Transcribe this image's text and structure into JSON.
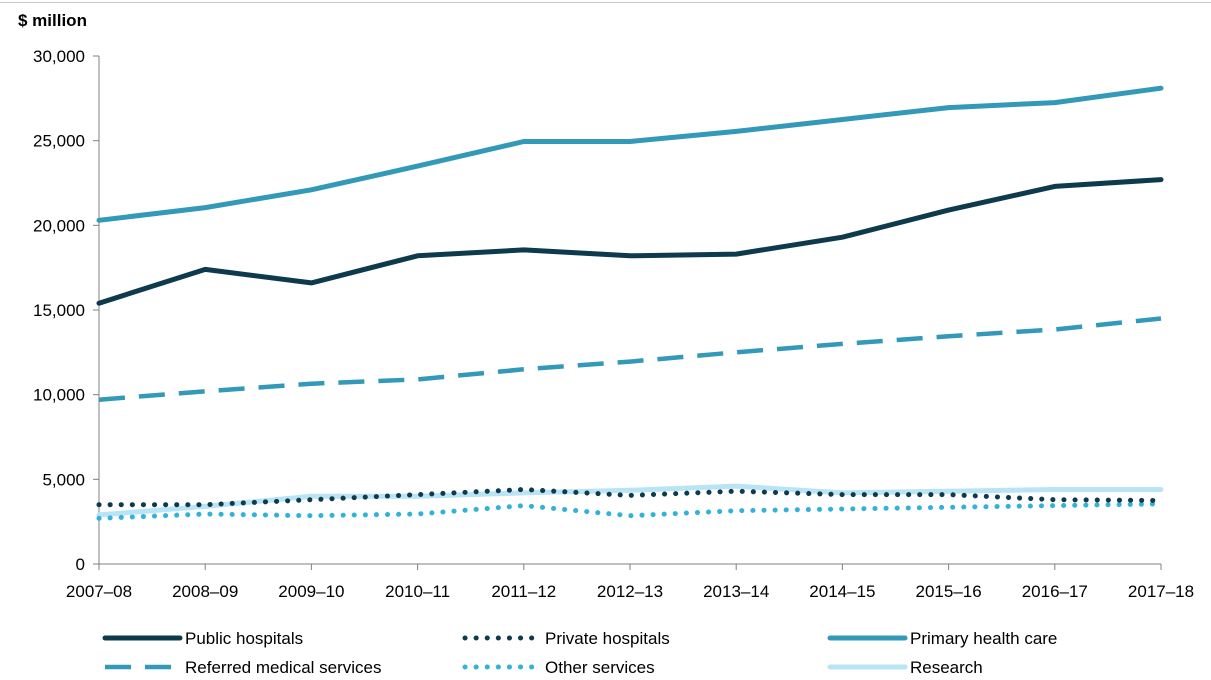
{
  "chart_data": {
    "type": "line",
    "ylabel": "$ million",
    "xlabel": "",
    "categories": [
      "2007–08",
      "2008–09",
      "2009–10",
      "2010–11",
      "2011–12",
      "2012–13",
      "2013–14",
      "2014–15",
      "2015–16",
      "2016–17",
      "2017–18"
    ],
    "ylim": [
      0,
      30000
    ],
    "yticks": [
      0,
      5000,
      10000,
      15000,
      20000,
      25000,
      30000
    ],
    "ytick_labels": [
      "0",
      "5,000",
      "10,000",
      "15,000",
      "20,000",
      "25,000",
      "30,000"
    ],
    "grid": false,
    "legend_position": "bottom",
    "series": [
      {
        "name": "Public hospitals",
        "style": "solid",
        "color": "#0d3a4c",
        "values": [
          15400,
          17400,
          16600,
          18200,
          18550,
          18200,
          18300,
          19300,
          20900,
          22300,
          22700
        ]
      },
      {
        "name": "Private hospitals",
        "style": "dotted",
        "color": "#0d3a4c",
        "values": [
          3500,
          3500,
          3800,
          4100,
          4400,
          4050,
          4300,
          4100,
          4100,
          3800,
          3750
        ]
      },
      {
        "name": "Primary health care",
        "style": "solid",
        "color": "#3399b8",
        "values": [
          20300,
          21050,
          22100,
          23500,
          24950,
          24950,
          25550,
          26250,
          26950,
          27250,
          28100
        ]
      },
      {
        "name": "Referred medical services",
        "style": "dashed",
        "color": "#3399b8",
        "values": [
          9700,
          10200,
          10650,
          10900,
          11500,
          11950,
          12500,
          13000,
          13450,
          13850,
          14500
        ]
      },
      {
        "name": "Other services",
        "style": "dotted",
        "color": "#33b2d9",
        "values": [
          2700,
          2950,
          2850,
          2950,
          3450,
          2850,
          3150,
          3250,
          3350,
          3450,
          3550
        ]
      },
      {
        "name": "Research",
        "style": "solid",
        "color": "#b9e4f5",
        "values": [
          2900,
          3400,
          4000,
          4000,
          4200,
          4350,
          4600,
          4200,
          4300,
          4400,
          4400
        ]
      }
    ]
  }
}
